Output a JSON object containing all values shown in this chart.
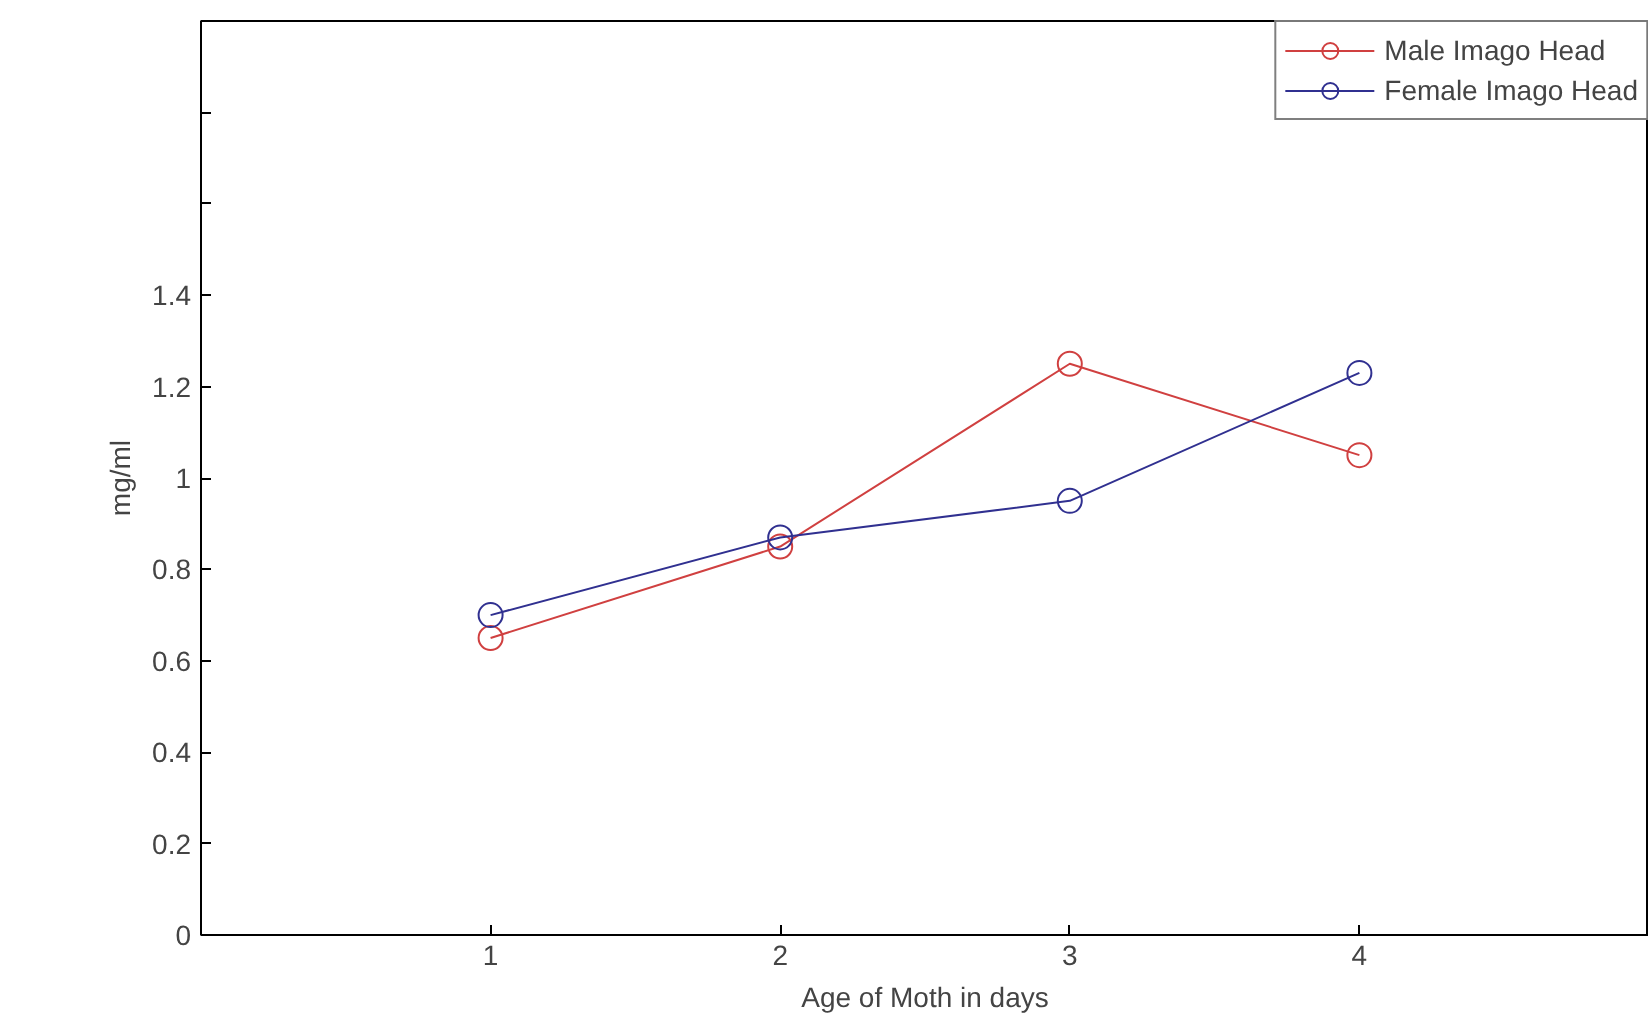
{
  "chart_data": {
    "type": "line",
    "xlabel": "Age of Moth in days",
    "ylabel": "mg/ml",
    "x": [
      1,
      2,
      3,
      4
    ],
    "series": [
      {
        "name": "Male Imago Head",
        "color": "#d04040",
        "values": [
          0.65,
          0.85,
          1.25,
          1.05
        ]
      },
      {
        "name": "Female Imago Head",
        "color": "#303090",
        "values": [
          0.7,
          0.87,
          0.95,
          1.23
        ]
      }
    ],
    "xlim": [
      0,
      5
    ],
    "xticks": [
      1,
      2,
      3,
      4
    ],
    "ylim": [
      0,
      2
    ],
    "yticks": [
      0,
      0.2,
      0.4,
      0.6,
      0.8,
      1,
      1.2,
      1.4,
      {
        "value": 1.6,
        "label": null
      },
      {
        "value": 1.8,
        "label": null
      }
    ],
    "marker": "circle",
    "line_style": "solid",
    "grid": false,
    "legend": "top right"
  }
}
